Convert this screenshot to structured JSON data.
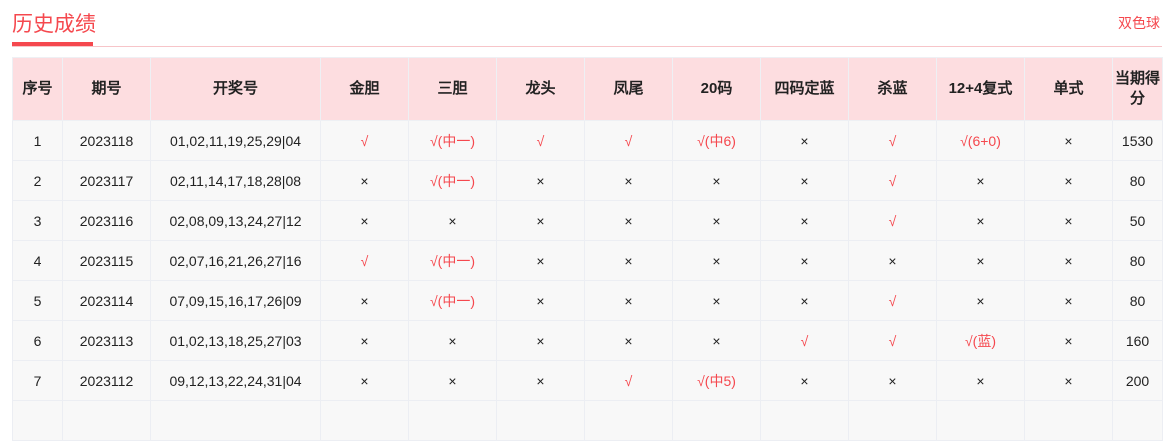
{
  "header": {
    "title": "历史成绩",
    "lottery": "双色球"
  },
  "colors": {
    "accent": "#f5484e",
    "header_bg": "#fddde0"
  },
  "table": {
    "columns": [
      "序号",
      "期号",
      "开奖号",
      "金胆",
      "三胆",
      "龙头",
      "凤尾",
      "20码",
      "四码定蓝",
      "杀蓝",
      "12+4复式",
      "单式",
      "当期得分"
    ],
    "rows": [
      [
        "1",
        "2023118",
        "01,02,11,19,25,29|04",
        "√",
        "√(中一)",
        "√",
        "√",
        "√(中6)",
        "×",
        "√",
        "√(6+0)",
        "×",
        "1530"
      ],
      [
        "2",
        "2023117",
        "02,11,14,17,18,28|08",
        "×",
        "√(中一)",
        "×",
        "×",
        "×",
        "×",
        "√",
        "×",
        "×",
        "80"
      ],
      [
        "3",
        "2023116",
        "02,08,09,13,24,27|12",
        "×",
        "×",
        "×",
        "×",
        "×",
        "×",
        "√",
        "×",
        "×",
        "50"
      ],
      [
        "4",
        "2023115",
        "02,07,16,21,26,27|16",
        "√",
        "√(中一)",
        "×",
        "×",
        "×",
        "×",
        "×",
        "×",
        "×",
        "80"
      ],
      [
        "5",
        "2023114",
        "07,09,15,16,17,26|09",
        "×",
        "√(中一)",
        "×",
        "×",
        "×",
        "×",
        "√",
        "×",
        "×",
        "80"
      ],
      [
        "6",
        "2023113",
        "01,02,13,18,25,27|03",
        "×",
        "×",
        "×",
        "×",
        "×",
        "√",
        "√",
        "√(蓝)",
        "×",
        "160"
      ],
      [
        "7",
        "2023112",
        "09,12,13,22,24,31|04",
        "×",
        "×",
        "×",
        "√",
        "√(中5)",
        "×",
        "×",
        "×",
        "×",
        "200"
      ]
    ]
  }
}
